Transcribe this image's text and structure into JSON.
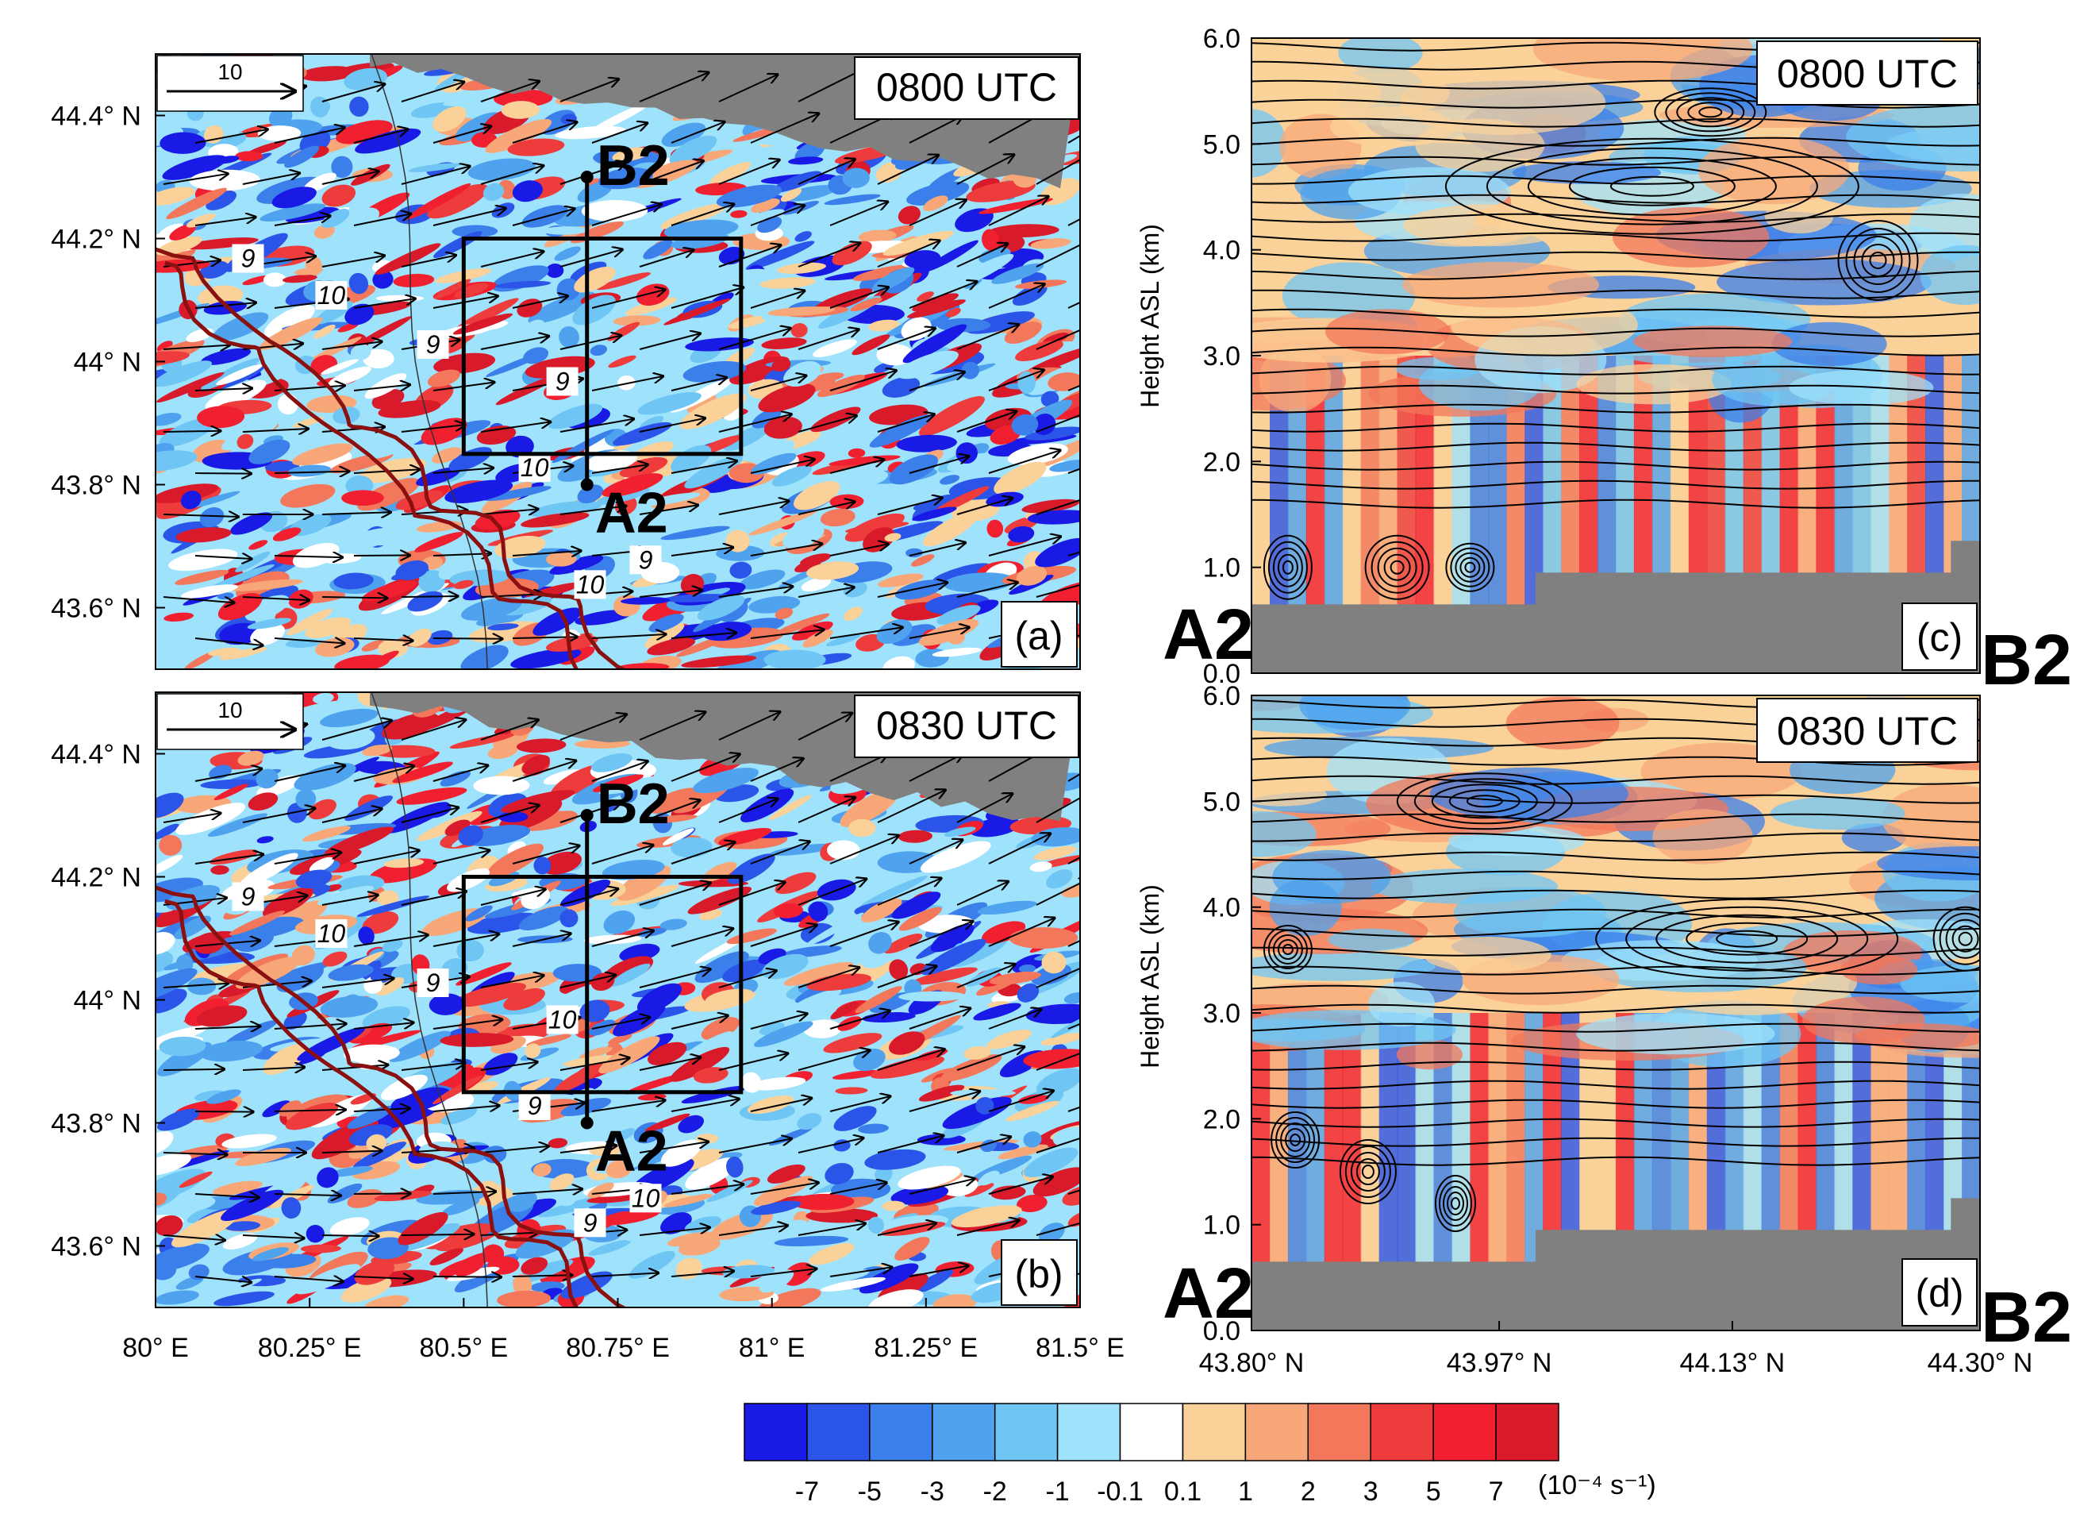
{
  "chart_data": [
    {
      "type": "heatmap",
      "panel": "(a)",
      "time": "0800 UTC",
      "xlim": [
        80.0,
        81.5
      ],
      "ylim": [
        43.5,
        44.5
      ],
      "yticks": [
        {
          "value": 44.4,
          "label": "44.4° N"
        },
        {
          "value": 44.2,
          "label": "44.2° N"
        },
        {
          "value": 44.0,
          "label": "44° N"
        },
        {
          "value": 43.8,
          "label": "43.8° N"
        },
        {
          "value": 43.6,
          "label": "43.6° N"
        }
      ],
      "vector_ref": "10",
      "section_line": {
        "start": {
          "label": "A2",
          "lon": 80.7,
          "lat": 43.8
        },
        "end": {
          "label": "B2",
          "lon": 80.7,
          "lat": 44.3
        }
      },
      "box": {
        "lon": [
          80.5,
          80.95
        ],
        "lat": [
          43.85,
          44.2
        ]
      },
      "contour_labels": [
        "9",
        "10",
        "9",
        "9",
        "10",
        "9",
        "10"
      ]
    },
    {
      "type": "heatmap",
      "panel": "(b)",
      "time": "0830 UTC",
      "xlim": [
        80.0,
        81.5
      ],
      "ylim": [
        43.5,
        44.5
      ],
      "yticks": [
        {
          "value": 44.4,
          "label": "44.4° N"
        },
        {
          "value": 44.2,
          "label": "44.2° N"
        },
        {
          "value": 44.0,
          "label": "44° N"
        },
        {
          "value": 43.8,
          "label": "43.8° N"
        },
        {
          "value": 43.6,
          "label": "43.6° N"
        }
      ],
      "xticks": [
        {
          "value": 80.0,
          "label": "80° E"
        },
        {
          "value": 80.25,
          "label": "80.25° E"
        },
        {
          "value": 80.5,
          "label": "80.5° E"
        },
        {
          "value": 80.75,
          "label": "80.75° E"
        },
        {
          "value": 81.0,
          "label": "81° E"
        },
        {
          "value": 81.25,
          "label": "81.25° E"
        },
        {
          "value": 81.5,
          "label": "81.5° E"
        }
      ],
      "vector_ref": "10",
      "section_line": {
        "start": {
          "label": "A2",
          "lon": 80.7,
          "lat": 43.8
        },
        "end": {
          "label": "B2",
          "lon": 80.7,
          "lat": 44.3
        }
      },
      "box": {
        "lon": [
          80.5,
          80.95
        ],
        "lat": [
          43.85,
          44.2
        ]
      },
      "contour_labels": [
        "9",
        "10",
        "9",
        "10",
        "9",
        "10",
        "9"
      ]
    },
    {
      "type": "heatmap",
      "panel": "(c)",
      "time": "0800 UTC",
      "ylabel": "Height ASL (km)",
      "xlim": [
        43.8,
        44.3
      ],
      "ylim": [
        0.0,
        6.0
      ],
      "yticks": [
        "0.0",
        "1.0",
        "2.0",
        "3.0",
        "4.0",
        "5.0",
        "6.0"
      ],
      "left_label": "A2",
      "right_label": "B2",
      "terrain_km": [
        {
          "from": 43.8,
          "to": 43.995,
          "top": 0.65
        },
        {
          "from": 43.995,
          "to": 44.28,
          "top": 0.95
        },
        {
          "from": 44.28,
          "to": 44.3,
          "top": 1.25
        }
      ]
    },
    {
      "type": "heatmap",
      "panel": "(d)",
      "time": "0830 UTC",
      "ylabel": "Height ASL (km)",
      "xlim": [
        43.8,
        44.3
      ],
      "ylim": [
        0.0,
        6.0
      ],
      "yticks": [
        "0.0",
        "1.0",
        "2.0",
        "3.0",
        "4.0",
        "5.0",
        "6.0"
      ],
      "xticks": [
        {
          "value": 43.8,
          "label": "43.80° N"
        },
        {
          "value": 43.97,
          "label": "43.97° N"
        },
        {
          "value": 44.13,
          "label": "44.13° N"
        },
        {
          "value": 44.3,
          "label": "44.30° N"
        }
      ],
      "left_label": "A2",
      "right_label": "B2",
      "terrain_km": [
        {
          "from": 43.8,
          "to": 43.995,
          "top": 0.65
        },
        {
          "from": 43.995,
          "to": 44.28,
          "top": 0.95
        },
        {
          "from": 44.28,
          "to": 44.3,
          "top": 1.25
        }
      ]
    }
  ],
  "colorbar": {
    "levels": [
      "-7",
      "-5",
      "-3",
      "-2",
      "-1",
      "-0.1",
      "0.1",
      "1",
      "2",
      "3",
      "5",
      "7"
    ],
    "colors": [
      "#1a1ae6",
      "#2b55e8",
      "#3b7fea",
      "#4ea2ee",
      "#6fc6f4",
      "#9fe2fb",
      "#ffffff",
      "#fbd19a",
      "#f8a878",
      "#f3775a",
      "#ee3b3b",
      "#f12030",
      "#d81a2a"
    ],
    "units": "(10⁻⁴ s⁻¹)"
  },
  "colors": {
    "terrain": "#808080",
    "contour": "#8b1010"
  }
}
